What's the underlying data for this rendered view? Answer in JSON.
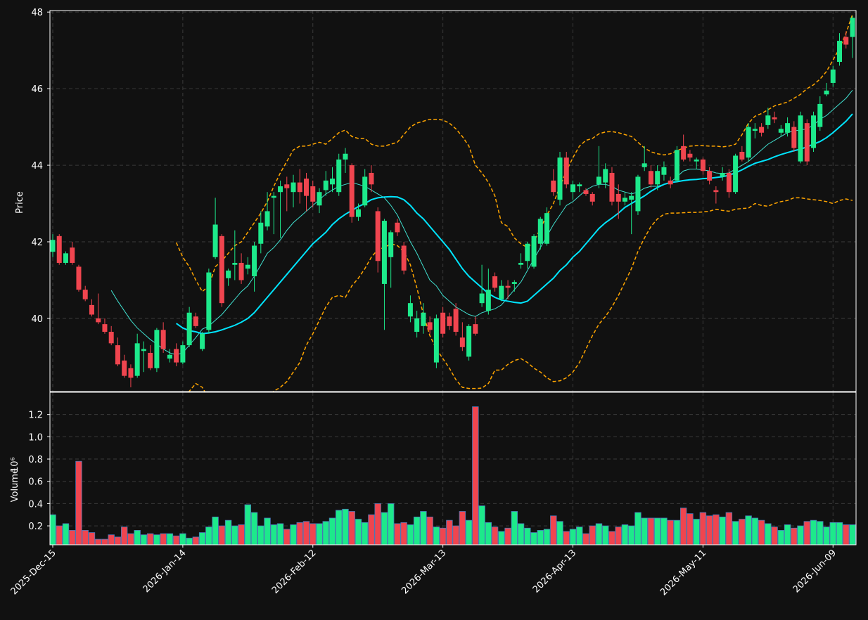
{
  "chart_data": {
    "type": "candlestick",
    "y_label": "Price",
    "categories": [
      "2025-Dec-15",
      null,
      null,
      null,
      null,
      null,
      null,
      null,
      null,
      null,
      null,
      null,
      null,
      null,
      null,
      null,
      null,
      null,
      null,
      null,
      "2026-Jan-14",
      null,
      null,
      null,
      null,
      null,
      null,
      null,
      null,
      null,
      null,
      null,
      null,
      null,
      null,
      null,
      null,
      null,
      null,
      null,
      "2026-Feb-12",
      null,
      null,
      null,
      null,
      null,
      null,
      null,
      null,
      null,
      null,
      null,
      null,
      null,
      null,
      null,
      null,
      null,
      null,
      null,
      "2026-Mar-13",
      null,
      null,
      null,
      null,
      null,
      null,
      null,
      null,
      null,
      null,
      null,
      null,
      null,
      null,
      null,
      null,
      null,
      null,
      null,
      "2026-Apr-13",
      null,
      null,
      null,
      null,
      null,
      null,
      null,
      null,
      null,
      null,
      null,
      null,
      null,
      null,
      null,
      null,
      null,
      null,
      null,
      "2026-May-11",
      null,
      null,
      null,
      null,
      null,
      null,
      null,
      null,
      null,
      null,
      null,
      null,
      null,
      null,
      null,
      null,
      null,
      null,
      null,
      "2026-Jun-09",
      null,
      null,
      null
    ],
    "open": [
      41.74,
      42.15,
      41.45,
      41.85,
      41.35,
      40.75,
      40.35,
      40.0,
      39.85,
      39.65,
      39.3,
      38.9,
      38.7,
      38.5,
      39.15,
      39.1,
      38.7,
      39.7,
      38.95,
      39.2,
      38.85,
      39.3,
      40.05,
      39.2,
      39.7,
      41.6,
      42.15,
      41.05,
      41.4,
      41.45,
      41.3,
      41.1,
      41.95,
      42.4,
      43.15,
      43.3,
      43.5,
      43.3,
      43.55,
      43.65,
      43.45,
      42.95,
      43.35,
      43.5,
      43.3,
      44.15,
      44.0,
      42.65,
      42.95,
      43.8,
      42.8,
      40.9,
      41.6,
      42.5,
      41.9,
      40.05,
      39.65,
      39.8,
      39.9,
      38.85,
      40.15,
      40.05,
      40.25,
      39.5,
      39.0,
      39.85,
      40.4,
      40.2,
      41.1,
      40.5,
      40.85,
      40.9,
      41.4,
      41.5,
      41.35,
      41.95,
      41.95,
      43.6,
      43.1,
      44.2,
      43.3,
      43.45,
      43.35,
      43.25,
      43.5,
      43.55,
      43.8,
      43.25,
      43.05,
      43.1,
      42.8,
      43.95,
      43.85,
      43.5,
      43.75,
      43.6,
      43.6,
      44.5,
      44.3,
      44.1,
      44.15,
      43.85,
      43.35,
      43.7,
      43.8,
      43.3,
      44.35,
      44.2,
      44.9,
      45.0,
      45.05,
      45.25,
      44.85,
      44.85,
      45.0,
      44.1,
      45.1,
      44.45,
      45.0,
      45.85,
      46.15,
      46.7,
      47.35,
      47.35
    ],
    "high": [
      42.2,
      42.2,
      41.75,
      42.0,
      41.4,
      40.85,
      40.5,
      40.65,
      40.0,
      39.8,
      39.5,
      39.05,
      38.8,
      39.6,
      39.4,
      39.3,
      39.75,
      39.9,
      39.2,
      39.35,
      39.4,
      40.3,
      40.15,
      39.65,
      41.3,
      43.15,
      42.2,
      41.3,
      42.3,
      41.7,
      41.6,
      42.0,
      42.8,
      43.3,
      43.3,
      43.6,
      43.7,
      43.75,
      43.9,
      43.8,
      43.6,
      43.4,
      43.85,
      43.95,
      44.3,
      44.45,
      44.05,
      43.0,
      43.9,
      44.0,
      42.9,
      42.6,
      42.3,
      42.6,
      42.0,
      40.6,
      40.2,
      40.4,
      40.05,
      40.1,
      40.3,
      40.15,
      40.4,
      39.9,
      39.85,
      40.05,
      41.4,
      41.3,
      41.2,
      41.0,
      41.0,
      41.0,
      41.7,
      42.0,
      42.2,
      42.65,
      42.9,
      43.9,
      44.35,
      44.35,
      43.6,
      43.55,
      43.4,
      43.3,
      44.5,
      44.05,
      43.95,
      43.5,
      43.3,
      43.3,
      43.75,
      44.5,
      44.0,
      44.0,
      44.1,
      43.7,
      44.5,
      44.8,
      44.4,
      44.2,
      44.2,
      43.95,
      43.45,
      43.95,
      43.9,
      44.3,
      44.5,
      45.1,
      45.1,
      45.1,
      45.5,
      45.4,
      45.05,
      45.25,
      45.15,
      45.4,
      45.2,
      45.4,
      45.8,
      46.15,
      46.6,
      47.45,
      47.5,
      47.9
    ],
    "low": [
      41.6,
      41.4,
      41.4,
      41.4,
      40.7,
      40.45,
      40.05,
      39.85,
      39.6,
      39.3,
      38.75,
      38.45,
      38.2,
      38.45,
      38.6,
      38.65,
      38.6,
      39.1,
      38.85,
      38.75,
      38.8,
      39.25,
      39.75,
      39.15,
      39.6,
      41.55,
      40.3,
      40.85,
      41.0,
      40.9,
      41.15,
      40.7,
      41.7,
      42.3,
      42.2,
      42.1,
      42.8,
      42.9,
      43.0,
      42.8,
      42.9,
      42.75,
      43.2,
      43.3,
      43.2,
      43.8,
      42.5,
      42.55,
      42.9,
      43.3,
      41.2,
      39.7,
      40.8,
      42.15,
      41.15,
      39.9,
      39.5,
      39.6,
      39.6,
      38.7,
      39.5,
      39.7,
      39.55,
      39.15,
      38.9,
      39.55,
      40.3,
      40.1,
      40.7,
      40.45,
      40.5,
      40.7,
      41.3,
      41.3,
      41.3,
      41.8,
      41.9,
      43.2,
      42.95,
      43.4,
      43.1,
      43.3,
      43.2,
      42.95,
      43.4,
      43.4,
      42.95,
      42.6,
      42.95,
      42.2,
      42.7,
      43.85,
      43.4,
      43.35,
      43.6,
      43.4,
      43.55,
      44.1,
      44.1,
      43.9,
      43.75,
      43.5,
      43.0,
      43.6,
      43.15,
      43.25,
      44.1,
      44.1,
      44.7,
      44.75,
      44.95,
      45.1,
      44.75,
      44.75,
      44.35,
      44.05,
      44.0,
      44.35,
      44.9,
      45.8,
      46.05,
      46.6,
      47.05,
      46.8
    ],
    "close": [
      42.05,
      41.45,
      41.7,
      41.45,
      40.75,
      40.5,
      40.1,
      39.9,
      39.65,
      39.35,
      38.8,
      38.5,
      38.45,
      39.35,
      39.2,
      38.7,
      39.7,
      39.2,
      39.05,
      38.85,
      39.3,
      40.15,
      39.8,
      39.6,
      41.2,
      42.45,
      40.4,
      41.25,
      41.45,
      41.0,
      41.4,
      41.9,
      42.5,
      42.8,
      43.2,
      43.45,
      43.4,
      43.55,
      43.3,
      43.2,
      43.05,
      43.3,
      43.6,
      43.65,
      44.15,
      44.3,
      42.65,
      42.85,
      43.7,
      43.5,
      41.5,
      42.55,
      42.25,
      42.25,
      41.25,
      40.4,
      40.0,
      40.15,
      39.7,
      40.0,
      39.6,
      39.8,
      39.65,
      39.25,
      39.8,
      39.6,
      40.65,
      40.75,
      40.8,
      40.85,
      40.8,
      40.95,
      41.45,
      41.95,
      42.15,
      42.6,
      42.75,
      43.3,
      44.2,
      43.5,
      43.5,
      43.5,
      43.25,
      43.05,
      43.7,
      43.9,
      43.05,
      43.05,
      43.15,
      43.2,
      43.7,
      44.05,
      43.5,
      43.85,
      43.95,
      43.5,
      44.4,
      44.15,
      44.2,
      44.15,
      43.85,
      43.6,
      43.3,
      43.8,
      43.3,
      44.25,
      44.15,
      45.0,
      44.95,
      44.85,
      45.3,
      45.2,
      44.95,
      45.1,
      44.45,
      45.3,
      44.1,
      45.3,
      45.6,
      45.95,
      46.5,
      47.25,
      47.15,
      47.85
    ],
    "up_color": "#1de98b",
    "down_color": "#f0454f",
    "ylim": [
      38.09,
      48.04
    ],
    "yticks": [
      40,
      42,
      44,
      46,
      48
    ],
    "grid": true,
    "lines": [
      {
        "color": "#40e0d0",
        "width": 1,
        "dashed": false,
        "values": [
          null,
          null,
          null,
          null,
          null,
          null,
          null,
          null,
          null,
          40.73,
          40.45,
          40.2,
          39.95,
          39.75,
          39.6,
          39.45,
          39.33,
          39.2,
          39.1,
          39.05,
          39.1,
          39.3,
          39.5,
          39.72,
          39.8,
          39.95,
          40.1,
          40.3,
          40.5,
          40.7,
          40.85,
          41.1,
          41.4,
          41.7,
          41.85,
          42.05,
          42.3,
          42.5,
          42.65,
          42.8,
          42.95,
          43.1,
          43.25,
          43.35,
          43.45,
          43.5,
          43.55,
          43.5,
          43.45,
          43.35,
          43.25,
          43.15,
          42.95,
          42.7,
          42.35,
          42.0,
          41.7,
          41.35,
          41.0,
          40.85,
          40.6,
          40.45,
          40.3,
          40.2,
          40.1,
          40.05,
          40.15,
          40.2,
          40.25,
          40.35,
          40.55,
          40.75,
          40.95,
          41.25,
          41.55,
          41.85,
          42.15,
          42.45,
          42.7,
          42.95,
          43.05,
          43.2,
          43.35,
          43.45,
          43.5,
          43.5,
          43.45,
          43.35,
          43.3,
          43.25,
          43.3,
          43.4,
          43.45,
          43.45,
          43.5,
          43.55,
          43.7,
          43.85,
          43.9,
          43.9,
          43.88,
          43.85,
          43.8,
          43.78,
          43.8,
          43.9,
          44.0,
          44.1,
          44.25,
          44.4,
          44.55,
          44.65,
          44.75,
          44.85,
          44.9,
          44.92,
          44.95,
          45.05,
          45.2,
          45.3,
          45.45,
          45.6,
          45.75,
          45.96
        ]
      },
      {
        "color": "#00e5ff",
        "width": 2,
        "dashed": false,
        "values": [
          null,
          null,
          null,
          null,
          null,
          null,
          null,
          null,
          null,
          null,
          null,
          null,
          null,
          null,
          null,
          null,
          null,
          null,
          null,
          39.87,
          39.75,
          39.68,
          39.65,
          39.6,
          39.62,
          39.65,
          39.7,
          39.76,
          39.82,
          39.9,
          40.0,
          40.15,
          40.35,
          40.55,
          40.75,
          40.95,
          41.15,
          41.35,
          41.55,
          41.75,
          41.95,
          42.1,
          42.25,
          42.45,
          42.6,
          42.72,
          42.82,
          42.92,
          43.0,
          43.1,
          43.15,
          43.17,
          43.18,
          43.17,
          43.1,
          42.95,
          42.75,
          42.6,
          42.4,
          42.2,
          42.0,
          41.8,
          41.55,
          41.3,
          41.1,
          40.95,
          40.8,
          40.65,
          40.55,
          40.48,
          40.45,
          40.42,
          40.4,
          40.45,
          40.6,
          40.75,
          40.9,
          41.05,
          41.25,
          41.4,
          41.6,
          41.75,
          41.95,
          42.15,
          42.35,
          42.5,
          42.62,
          42.75,
          42.9,
          43.0,
          43.1,
          43.2,
          43.32,
          43.42,
          43.5,
          43.55,
          43.57,
          43.6,
          43.62,
          43.63,
          43.65,
          43.66,
          43.68,
          43.7,
          43.74,
          43.8,
          43.88,
          43.97,
          44.05,
          44.1,
          44.15,
          44.22,
          44.28,
          44.33,
          44.38,
          44.42,
          44.48,
          44.55,
          44.62,
          44.72,
          44.85,
          45.0,
          45.15,
          45.34
        ]
      },
      {
        "color": "#ffa500",
        "width": 1.5,
        "dashed": true,
        "values": [
          null,
          null,
          null,
          null,
          null,
          null,
          null,
          null,
          null,
          null,
          null,
          null,
          null,
          null,
          null,
          null,
          null,
          null,
          null,
          41.98,
          41.6,
          41.35,
          41.0,
          40.7,
          40.85,
          41.35,
          41.5,
          41.7,
          41.9,
          42.0,
          42.25,
          42.5,
          42.75,
          43.05,
          43.45,
          43.8,
          44.1,
          44.4,
          44.5,
          44.5,
          44.55,
          44.6,
          44.55,
          44.7,
          44.85,
          44.92,
          44.75,
          44.7,
          44.7,
          44.55,
          44.5,
          44.5,
          44.55,
          44.6,
          44.8,
          45.0,
          45.1,
          45.15,
          45.2,
          45.2,
          45.18,
          45.1,
          44.95,
          44.75,
          44.5,
          44.0,
          43.8,
          43.55,
          43.2,
          42.5,
          42.4,
          42.1,
          41.95,
          41.85,
          42.0,
          42.35,
          42.7,
          43.0,
          43.45,
          43.85,
          44.2,
          44.5,
          44.65,
          44.7,
          44.82,
          44.87,
          44.88,
          44.85,
          44.8,
          44.75,
          44.6,
          44.45,
          44.35,
          44.3,
          44.27,
          44.3,
          44.38,
          44.45,
          44.5,
          44.51,
          44.51,
          44.5,
          44.5,
          44.48,
          44.5,
          44.55,
          44.8,
          45.1,
          45.28,
          45.35,
          45.45,
          45.55,
          45.6,
          45.65,
          45.75,
          45.85,
          46.0,
          46.1,
          46.25,
          46.45,
          46.75,
          47.05,
          47.45,
          47.94
        ]
      },
      {
        "color": "#ffa500",
        "width": 1.5,
        "dashed": true,
        "values": [
          null,
          null,
          null,
          null,
          null,
          null,
          null,
          null,
          null,
          null,
          null,
          null,
          null,
          null,
          null,
          null,
          null,
          null,
          null,
          37.76,
          37.95,
          38.1,
          38.3,
          38.2,
          37.9,
          37.7,
          37.6,
          37.5,
          37.49,
          37.5,
          37.6,
          37.7,
          37.85,
          38.0,
          38.1,
          38.2,
          38.35,
          38.6,
          38.85,
          39.3,
          39.6,
          39.95,
          40.3,
          40.55,
          40.6,
          40.55,
          40.85,
          41.05,
          41.3,
          41.6,
          41.8,
          41.85,
          41.95,
          41.9,
          41.75,
          41.4,
          40.8,
          40.1,
          39.55,
          39.2,
          38.95,
          38.7,
          38.4,
          38.2,
          38.17,
          38.17,
          38.18,
          38.3,
          38.65,
          38.65,
          38.8,
          38.9,
          38.95,
          38.85,
          38.7,
          38.6,
          38.45,
          38.35,
          38.37,
          38.45,
          38.6,
          38.85,
          39.2,
          39.55,
          39.85,
          40.05,
          40.3,
          40.6,
          40.95,
          41.3,
          41.75,
          42.1,
          42.4,
          42.6,
          42.72,
          42.75,
          42.75,
          42.76,
          42.77,
          42.77,
          42.78,
          42.8,
          42.85,
          42.82,
          42.8,
          42.85,
          42.87,
          42.88,
          43.0,
          42.95,
          42.93,
          43.0,
          43.05,
          43.08,
          43.15,
          43.15,
          43.12,
          43.1,
          43.08,
          43.05,
          43.0,
          43.08,
          43.12,
          43.08
        ]
      }
    ],
    "volume": {
      "label": "Volume",
      "unit": "10⁶",
      "edge_color": "#4a78b8",
      "ylim": [
        0.03,
        1.4
      ],
      "yticks": [
        0.2,
        0.4,
        0.6,
        0.8,
        {
          "value": 1,
          "label": "1.0"
        },
        1.2
      ],
      "values": [
        0.3,
        0.2,
        0.22,
        0.16,
        0.78,
        0.16,
        0.14,
        0.08,
        0.08,
        0.12,
        0.1,
        0.19,
        0.13,
        0.16,
        0.12,
        0.13,
        0.12,
        0.13,
        0.13,
        0.11,
        0.13,
        0.09,
        0.1,
        0.14,
        0.19,
        0.28,
        0.2,
        0.25,
        0.2,
        0.21,
        0.39,
        0.32,
        0.2,
        0.27,
        0.21,
        0.22,
        0.17,
        0.21,
        0.23,
        0.24,
        0.22,
        0.22,
        0.24,
        0.27,
        0.34,
        0.35,
        0.33,
        0.26,
        0.23,
        0.3,
        0.4,
        0.32,
        0.4,
        0.22,
        0.23,
        0.21,
        0.28,
        0.33,
        0.28,
        0.19,
        0.18,
        0.25,
        0.2,
        0.33,
        0.25,
        1.27,
        0.38,
        0.23,
        0.19,
        0.15,
        0.18,
        0.33,
        0.22,
        0.18,
        0.14,
        0.16,
        0.17,
        0.29,
        0.24,
        0.15,
        0.17,
        0.19,
        0.13,
        0.2,
        0.22,
        0.2,
        0.15,
        0.19,
        0.21,
        0.2,
        0.32,
        0.27,
        0.27,
        0.27,
        0.27,
        0.25,
        0.25,
        0.36,
        0.31,
        0.26,
        0.32,
        0.29,
        0.3,
        0.28,
        0.32,
        0.24,
        0.26,
        0.29,
        0.27,
        0.25,
        0.22,
        0.19,
        0.16,
        0.21,
        0.18,
        0.2,
        0.24,
        0.25,
        0.24,
        0.19,
        0.23,
        0.23,
        0.21,
        0.21
      ]
    }
  }
}
